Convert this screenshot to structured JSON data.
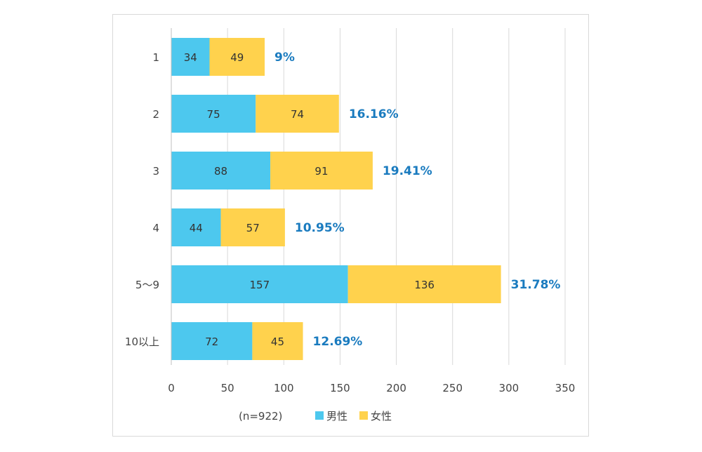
{
  "chart_data": {
    "type": "bar",
    "orientation": "horizontal",
    "stacked": true,
    "categories": [
      "1",
      "2",
      "3",
      "4",
      "5〜9",
      "10以上"
    ],
    "series": [
      {
        "name": "男性",
        "values": [
          34,
          75,
          88,
          44,
          157,
          72
        ],
        "color": "#4dc8ee"
      },
      {
        "name": "女性",
        "values": [
          49,
          74,
          91,
          57,
          136,
          45
        ],
        "color": "#ffd24d"
      }
    ],
    "percent_labels": [
      "9%",
      "16.16%",
      "19.41%",
      "10.95%",
      "31.78%",
      "12.69%"
    ],
    "percent_color": "#1a7bbf",
    "xlim": [
      0,
      350
    ],
    "xticks": [
      0,
      50,
      100,
      150,
      200,
      250,
      300,
      350
    ],
    "grid": true,
    "note": "(n=922)",
    "legend_position": "bottom"
  }
}
